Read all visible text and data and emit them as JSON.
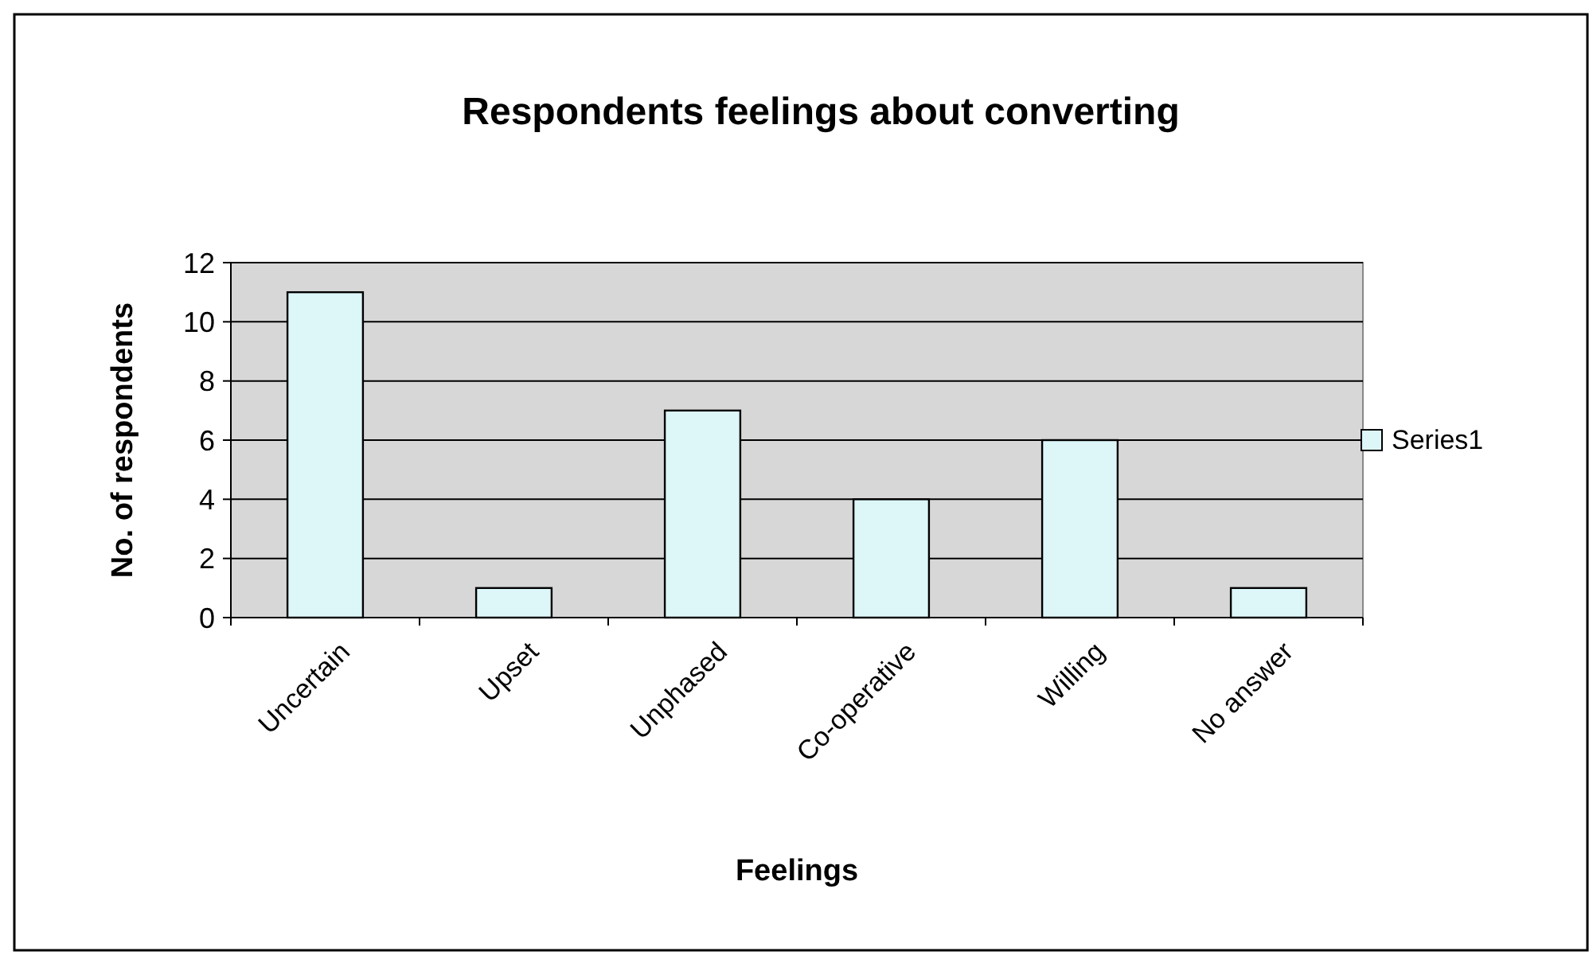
{
  "chart_data": {
    "type": "bar",
    "title": "Respondents feelings about converting",
    "xlabel": "Feelings",
    "ylabel": "No. of respondents",
    "categories": [
      "Uncertain",
      "Upset",
      "Unphased",
      "Co-operative",
      "Willing",
      "No answer"
    ],
    "series": [
      {
        "name": "Series1",
        "color": "#ddf7f9",
        "values": [
          11,
          1,
          7,
          4,
          6,
          1
        ]
      }
    ],
    "ylim": [
      0,
      12
    ],
    "yticks": [
      0,
      2,
      4,
      6,
      8,
      10,
      12
    ],
    "grid": "y",
    "legend": "right"
  }
}
